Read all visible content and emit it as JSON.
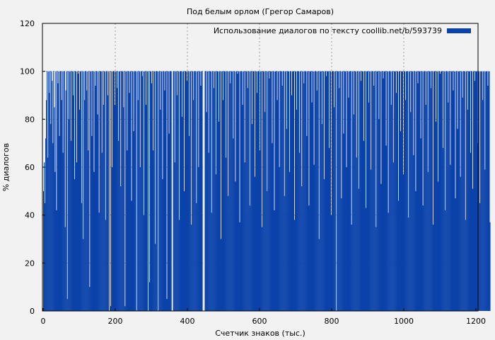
{
  "chart_data": {
    "type": "bar",
    "title": "Под белым орлом (Грегор Самаров)",
    "xlabel": "Счетчик знаков (тыс.)",
    "ylabel": "% диалогов",
    "xlim": [
      0,
      1200
    ],
    "ylim": [
      0,
      120
    ],
    "x_ticks": [
      "0",
      "200",
      "400",
      "600",
      "800",
      "1000",
      "1200"
    ],
    "y_ticks": [
      "0",
      "20",
      "40",
      "60",
      "80",
      "100",
      "120"
    ],
    "grid": true,
    "legend_position": "top-right",
    "series": [
      {
        "name": "Использование диалогов по тексту coollib.net/b/593739",
        "color": "#0a42aa",
        "bin_width": 2,
        "values": [
          50,
          62,
          45,
          72,
          88,
          100,
          64,
          100,
          91,
          100,
          78,
          100,
          96,
          70,
          100,
          85,
          58,
          100,
          42,
          100,
          95,
          100,
          73,
          100,
          100,
          88,
          100,
          66,
          100,
          100,
          35,
          92,
          100,
          5,
          100,
          80,
          100,
          100,
          71,
          100,
          100,
          90,
          100,
          55,
          100,
          100,
          62,
          100,
          99,
          100,
          84,
          100,
          100,
          45,
          100,
          30,
          100,
          88,
          100,
          100,
          92,
          100,
          67,
          100,
          10,
          100,
          100,
          73,
          100,
          100,
          58,
          100,
          94,
          100,
          100,
          82,
          100,
          41,
          100,
          100,
          100,
          66,
          100,
          86,
          100,
          100,
          38,
          100,
          100,
          90,
          100,
          0,
          100,
          2,
          100,
          60,
          100,
          100,
          100,
          86,
          100,
          100,
          93,
          100,
          71,
          100,
          100,
          52,
          100,
          100,
          100,
          85,
          100,
          2,
          100,
          100,
          67,
          100,
          100,
          91,
          100,
          100,
          46,
          100,
          100,
          75,
          100,
          100,
          100,
          0,
          100,
          88,
          100,
          100,
          60,
          100,
          100,
          98,
          100,
          40,
          100,
          100,
          86,
          100,
          100,
          0,
          100,
          12,
          100,
          100,
          95,
          100,
          67,
          100,
          100,
          28,
          100,
          100,
          100,
          0,
          100,
          100,
          84,
          100,
          100,
          55,
          100,
          100,
          92,
          100,
          100,
          5,
          100,
          100,
          74,
          100,
          100,
          100,
          0,
          0,
          100,
          100,
          62,
          100,
          100,
          90,
          100,
          100,
          38,
          100,
          100,
          100,
          81,
          100,
          100,
          50,
          100,
          100,
          100,
          96,
          100,
          100,
          73,
          100,
          100,
          36,
          100,
          100,
          88,
          100,
          100,
          100,
          45,
          100,
          100,
          60,
          100,
          100,
          94,
          100,
          100,
          0,
          0,
          0,
          100,
          100,
          83,
          100,
          100,
          66,
          100,
          100,
          100,
          41,
          100,
          100,
          93,
          100,
          100,
          57,
          100,
          100,
          100,
          79,
          100,
          100,
          30,
          100,
          100,
          88,
          100,
          100,
          100,
          64,
          100,
          100,
          48,
          100,
          100,
          95,
          100,
          100,
          100,
          72,
          100,
          100,
          54,
          100,
          100,
          99,
          100,
          100,
          37,
          100,
          100,
          100,
          86,
          100,
          100,
          62,
          100,
          100,
          100,
          93,
          100,
          100,
          44,
          100,
          100,
          78,
          100,
          100,
          100,
          56,
          100,
          100,
          91,
          100,
          100,
          100,
          67,
          100,
          100,
          35,
          100,
          100,
          100,
          83,
          100,
          100,
          50,
          100,
          100,
          97,
          100,
          100,
          100,
          70,
          100,
          100,
          42,
          100,
          100,
          100,
          88,
          100,
          100,
          60,
          100,
          100,
          100,
          94,
          100,
          100,
          48,
          100,
          100,
          76,
          100,
          100,
          100,
          58,
          100,
          100,
          90,
          100,
          100,
          100,
          38,
          100,
          100,
          84,
          100,
          100,
          100,
          66,
          100,
          100,
          52,
          100,
          100,
          95,
          100,
          100,
          100,
          73,
          100,
          100,
          44,
          100,
          100,
          100,
          87,
          100,
          100,
          61,
          100,
          100,
          100,
          92,
          100,
          100,
          30,
          100,
          100,
          100,
          78,
          100,
          100,
          55,
          100,
          100,
          98,
          100,
          100,
          100,
          68,
          100,
          100,
          40,
          100,
          100,
          100,
          85,
          100,
          100,
          0,
          100,
          100,
          100,
          93,
          100,
          100,
          47,
          100,
          100,
          74,
          100,
          100,
          100,
          60,
          100,
          100,
          89,
          100,
          100,
          100,
          36,
          100,
          100,
          82,
          100,
          100,
          100,
          64,
          100,
          100,
          51,
          100,
          100,
          96,
          100,
          100,
          100,
          71,
          100,
          100,
          43,
          100,
          100,
          100,
          87,
          100,
          100,
          59,
          100,
          100,
          100,
          94,
          100,
          100,
          35,
          100,
          100,
          100,
          80,
          100,
          100,
          53,
          100,
          100,
          97,
          100,
          100,
          100,
          69,
          100,
          100,
          41,
          100,
          100,
          100,
          86,
          100,
          100,
          62,
          100,
          100,
          100,
          91,
          100,
          100,
          46,
          100,
          100,
          75,
          100,
          100,
          100,
          57,
          100,
          100,
          88,
          100,
          100,
          100,
          39,
          100,
          100,
          83,
          100,
          100,
          100,
          65,
          100,
          100,
          50,
          100,
          100,
          95,
          100,
          100,
          100,
          72,
          100,
          100,
          44,
          100,
          100,
          100,
          86,
          100,
          100,
          58,
          100,
          100,
          100,
          93,
          100,
          100,
          36,
          100,
          100,
          100,
          79,
          100,
          100,
          54,
          100,
          100,
          99,
          100,
          100,
          100,
          68,
          100,
          100,
          42,
          100,
          100,
          100,
          87,
          100,
          100,
          61,
          100,
          100,
          100,
          92,
          100,
          100,
          47,
          100,
          100,
          76,
          100,
          100,
          100,
          56,
          100,
          100,
          89,
          100,
          100,
          100,
          38,
          100,
          100,
          84,
          100,
          100,
          100,
          66,
          100,
          100,
          51,
          100,
          100,
          96,
          100,
          100,
          100,
          70,
          100,
          100,
          45,
          100,
          100,
          100,
          88,
          100,
          100,
          59,
          100,
          100,
          100,
          94,
          100,
          100,
          37
        ]
      }
    ]
  }
}
